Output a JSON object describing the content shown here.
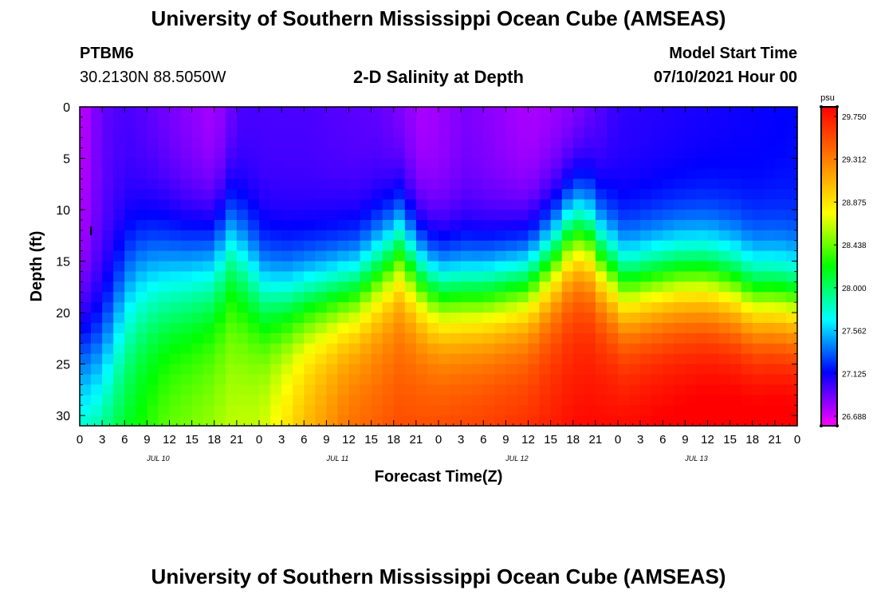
{
  "page": {
    "title_top": "University of Southern Mississippi Ocean Cube (AMSEAS)",
    "title_bottom": "University of Southern Mississippi Ocean Cube (AMSEAS)"
  },
  "header": {
    "station": "PTBM6",
    "coords": "30.2130N  88.5050W",
    "plot_title": "2-D Salinity at Depth",
    "model_label": "Model Start Time",
    "model_start": "07/10/2021 Hour 00"
  },
  "chart_data": {
    "type": "heatmap",
    "title": "2-D Salinity at Depth",
    "xlabel": "Forecast Time(Z)",
    "ylabel": "Depth (ft)",
    "x_range_hours": [
      0,
      96
    ],
    "y_range_ft": [
      0,
      31
    ],
    "x_tick_labels": [
      "0",
      "3",
      "6",
      "9",
      "12",
      "15",
      "18",
      "21",
      "0",
      "3",
      "6",
      "9",
      "12",
      "15",
      "18",
      "21",
      "0",
      "3",
      "6",
      "9",
      "12",
      "15",
      "18",
      "21",
      "0",
      "3",
      "6",
      "9",
      "12",
      "15",
      "18",
      "21",
      "0"
    ],
    "y_ticks": [
      0,
      5,
      10,
      15,
      20,
      25,
      30
    ],
    "day_labels": [
      "JUL 10",
      "JUL 11",
      "JUL 12",
      "JUL 13"
    ],
    "colorbar": {
      "unit": "psu",
      "min": 26.688,
      "max": 29.75,
      "tick_labels": [
        "29.750",
        "29.312",
        "28.875",
        "28.438",
        "28.000",
        "27.562",
        "27.125",
        "26.688"
      ],
      "colors": [
        "#ff00ff",
        "#8000ff",
        "#0000ff",
        "#0080ff",
        "#00ffff",
        "#00ff80",
        "#00ff00",
        "#80ff00",
        "#ffff00",
        "#ffbf00",
        "#ff8000",
        "#ff4000",
        "#ff0000"
      ]
    },
    "halocline_depth_ft": [
      [
        0,
        24.5
      ],
      [
        3,
        24
      ],
      [
        5,
        20
      ],
      [
        7,
        17
      ],
      [
        9,
        16
      ],
      [
        14,
        16
      ],
      [
        18,
        15.5
      ],
      [
        20,
        13
      ],
      [
        22,
        15
      ],
      [
        25,
        18
      ],
      [
        28,
        18.5
      ],
      [
        33,
        18
      ],
      [
        37,
        17.5
      ],
      [
        41,
        15
      ],
      [
        43,
        13.5
      ],
      [
        45,
        16
      ],
      [
        48,
        18
      ],
      [
        54,
        18
      ],
      [
        60,
        17
      ],
      [
        64,
        14
      ],
      [
        66,
        12
      ],
      [
        68,
        12.5
      ],
      [
        70,
        15
      ],
      [
        73,
        17.5
      ],
      [
        76,
        17
      ],
      [
        80,
        16.5
      ],
      [
        84,
        16.5
      ],
      [
        88,
        17.5
      ],
      [
        90,
        18.5
      ],
      [
        93,
        18.5
      ],
      [
        96,
        19
      ]
    ],
    "deep_salinity_psu": [
      [
        0,
        27.95
      ],
      [
        6,
        28.05
      ],
      [
        12,
        28.3
      ],
      [
        18,
        28.4
      ],
      [
        24,
        28.5
      ],
      [
        30,
        28.9
      ],
      [
        36,
        29.2
      ],
      [
        48,
        29.35
      ],
      [
        60,
        29.45
      ],
      [
        72,
        29.6
      ],
      [
        84,
        29.7
      ],
      [
        96,
        29.75
      ]
    ],
    "surface_salinity_psu": [
      [
        0,
        26.8
      ],
      [
        3,
        27.0
      ],
      [
        6,
        27.05
      ],
      [
        12,
        26.95
      ],
      [
        18,
        26.85
      ],
      [
        22,
        27.05
      ],
      [
        30,
        27.05
      ],
      [
        40,
        27.0
      ],
      [
        46,
        26.85
      ],
      [
        52,
        26.95
      ],
      [
        60,
        26.85
      ],
      [
        66,
        26.9
      ],
      [
        72,
        27.1
      ],
      [
        84,
        27.15
      ],
      [
        96,
        27.2
      ]
    ],
    "minimum_marker": {
      "hour": 1.5,
      "depth_ft": 12,
      "label": "I"
    }
  }
}
